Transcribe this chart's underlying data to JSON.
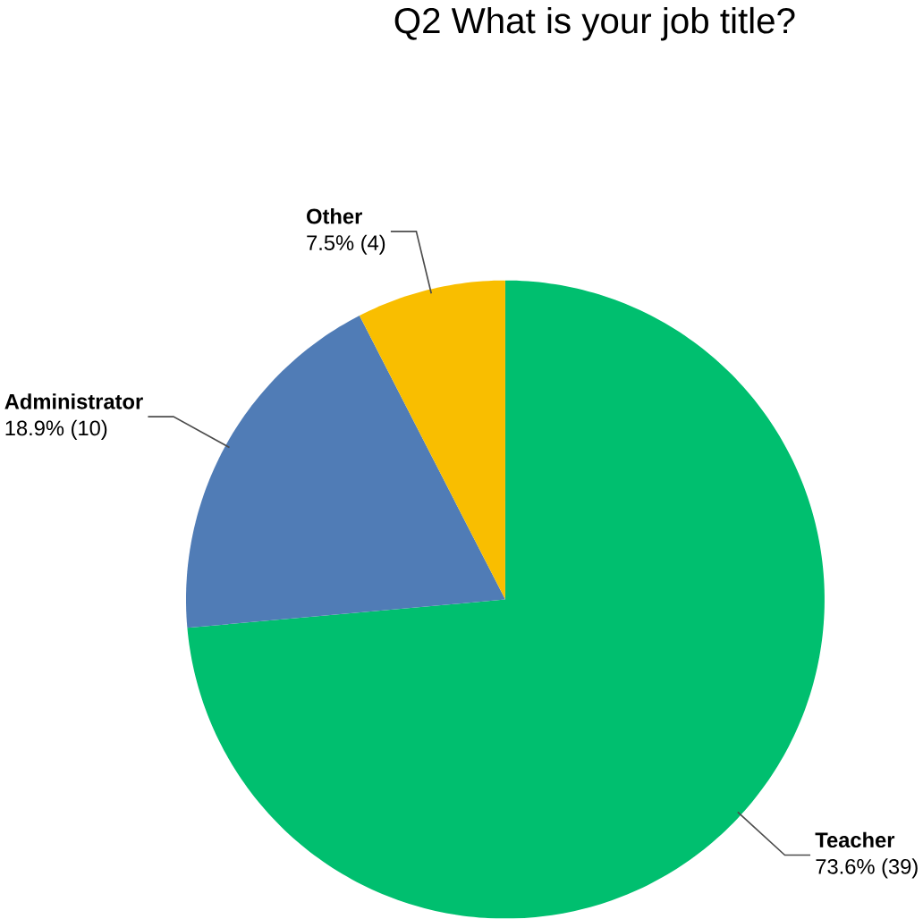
{
  "chart_data": {
    "type": "pie",
    "title": "Q2 What is your job title?",
    "categories": [
      "Teacher",
      "Administrator",
      "Other"
    ],
    "values": [
      39,
      10,
      4
    ],
    "colors": [
      "#00bf6f",
      "#507cb6",
      "#f9be00"
    ],
    "value_labels": [
      "73.6% (39)",
      "18.9% (10)",
      "7.5% (4)"
    ]
  }
}
